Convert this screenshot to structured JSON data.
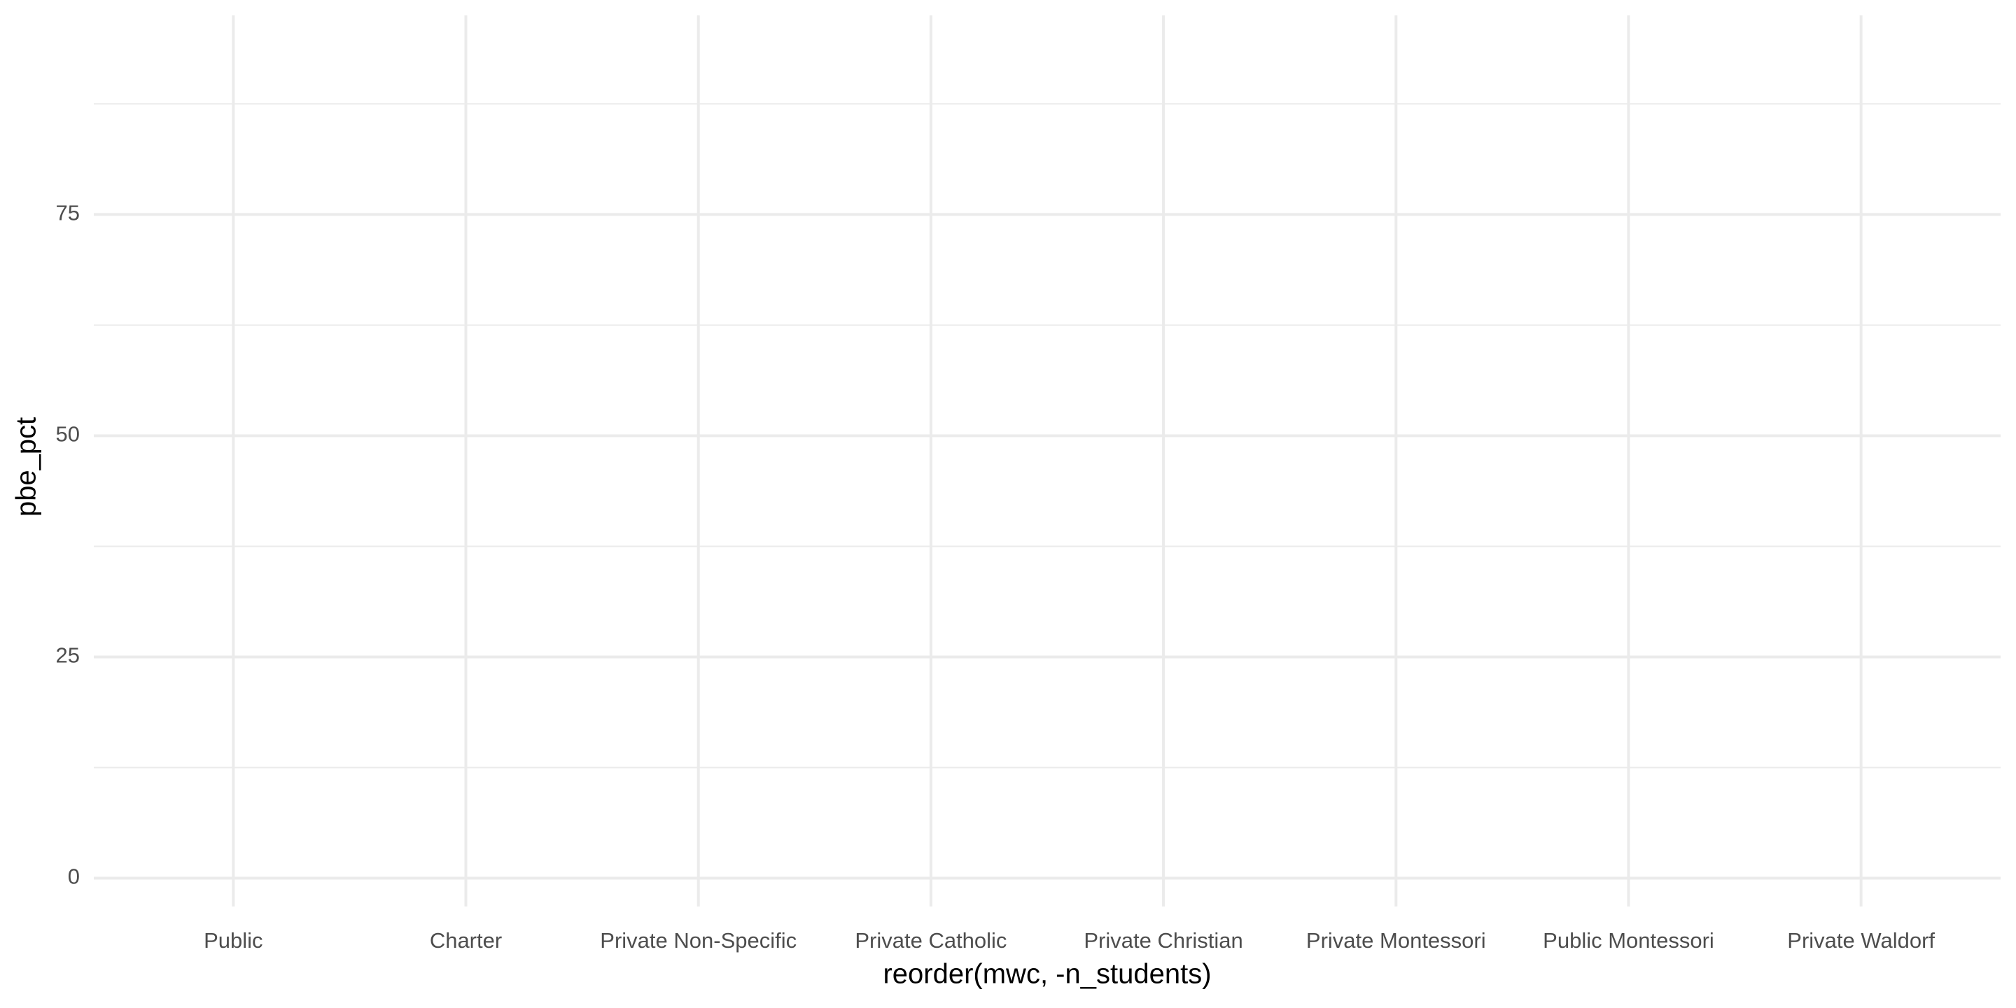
{
  "chart_data": {
    "type": "bar",
    "categories": [
      "Public",
      "Charter",
      "Private Non-Specific",
      "Private Catholic",
      "Private Christian",
      "Private Montessori",
      "Public Montessori",
      "Private Waldorf"
    ],
    "x_label": "reorder(mwc, -n_students)",
    "y_label": "pbe_pct",
    "ylim": [
      -3.2,
      97.5
    ],
    "yticks": [
      0,
      25,
      50,
      75
    ],
    "minor_yticks": [
      12.5,
      37.5,
      62.5,
      87.5
    ],
    "grid": true
  }
}
